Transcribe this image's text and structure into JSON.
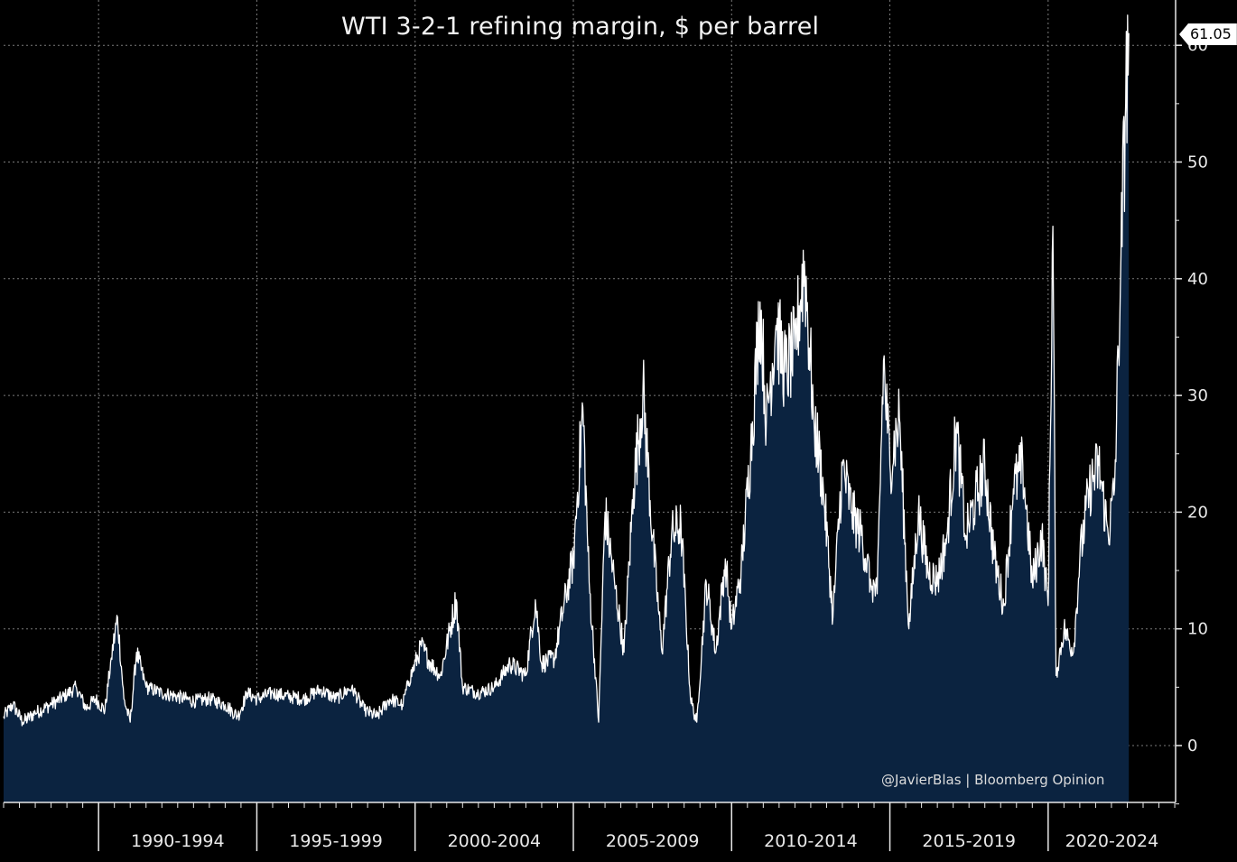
{
  "chart_data": {
    "type": "area",
    "title": "WTI 3-2-1 refining margin, $ per barrel",
    "xlabel": "",
    "ylabel": "",
    "x_range": [
      1987.0,
      2023.0
    ],
    "ylim": [
      -5,
      62
    ],
    "y_ticks": [
      0,
      10,
      20,
      30,
      40,
      50,
      60
    ],
    "y_tick_labels": [
      "0",
      "10",
      "20",
      "30",
      "40",
      "50",
      "60"
    ],
    "x_periods": [
      {
        "label": "1990-1994",
        "start": 1990,
        "end": 1995
      },
      {
        "label": "1995-1999",
        "start": 1995,
        "end": 2000
      },
      {
        "label": "2000-2004",
        "start": 2000,
        "end": 2005
      },
      {
        "label": "2005-2009",
        "start": 2005,
        "end": 2010
      },
      {
        "label": "2010-2014",
        "start": 2010,
        "end": 2015
      },
      {
        "label": "2015-2019",
        "start": 2015,
        "end": 2020
      },
      {
        "label": "2020-2024",
        "start": 2020,
        "end": 2025
      }
    ],
    "last_value_label": "61.05",
    "grid": true,
    "fill_color": "#0b2340",
    "line_color": "#ffffff",
    "series": [
      {
        "name": "WTI 3-2-1 refining margin",
        "points": [
          [
            1987.0,
            2.5
          ],
          [
            1987.3,
            3.5
          ],
          [
            1987.6,
            2.0
          ],
          [
            1988.0,
            2.8
          ],
          [
            1988.5,
            3.5
          ],
          [
            1988.9,
            4.2
          ],
          [
            1989.3,
            5.0
          ],
          [
            1989.6,
            3.2
          ],
          [
            1989.9,
            4.0
          ],
          [
            1990.2,
            3.0
          ],
          [
            1990.4,
            7.5
          ],
          [
            1990.6,
            11.0
          ],
          [
            1990.8,
            4.0
          ],
          [
            1991.0,
            2.0
          ],
          [
            1991.2,
            8.0
          ],
          [
            1991.5,
            5.0
          ],
          [
            1992.0,
            4.5
          ],
          [
            1992.5,
            4.2
          ],
          [
            1993.0,
            3.8
          ],
          [
            1993.5,
            4.0
          ],
          [
            1994.0,
            3.5
          ],
          [
            1994.4,
            2.5
          ],
          [
            1994.7,
            4.5
          ],
          [
            1995.0,
            4.0
          ],
          [
            1995.5,
            4.5
          ],
          [
            1996.0,
            4.2
          ],
          [
            1996.5,
            4.0
          ],
          [
            1997.0,
            4.8
          ],
          [
            1997.5,
            4.0
          ],
          [
            1998.0,
            5.0
          ],
          [
            1998.4,
            3.0
          ],
          [
            1998.8,
            2.5
          ],
          [
            1999.2,
            4.0
          ],
          [
            1999.6,
            3.5
          ],
          [
            1999.8,
            5.5
          ],
          [
            2000.2,
            8.5
          ],
          [
            2000.5,
            7.0
          ],
          [
            2000.8,
            6.0
          ],
          [
            2001.3,
            12.5
          ],
          [
            2001.5,
            5.0
          ],
          [
            2002.0,
            4.5
          ],
          [
            2002.5,
            5.0
          ],
          [
            2003.0,
            7.0
          ],
          [
            2003.5,
            6.0
          ],
          [
            2003.8,
            12.5
          ],
          [
            2004.0,
            7.0
          ],
          [
            2004.4,
            7.5
          ],
          [
            2004.7,
            12.0
          ],
          [
            2005.0,
            16.0
          ],
          [
            2005.3,
            29.0
          ],
          [
            2005.5,
            14.0
          ],
          [
            2005.8,
            2.0
          ],
          [
            2006.0,
            20.0
          ],
          [
            2006.3,
            14.0
          ],
          [
            2006.6,
            8.0
          ],
          [
            2006.9,
            22.0
          ],
          [
            2007.2,
            30.5
          ],
          [
            2007.5,
            18.0
          ],
          [
            2007.8,
            8.0
          ],
          [
            2008.1,
            18.0
          ],
          [
            2008.4,
            19.0
          ],
          [
            2008.7,
            4.0
          ],
          [
            2008.9,
            2.0
          ],
          [
            2009.2,
            14.0
          ],
          [
            2009.5,
            8.0
          ],
          [
            2009.8,
            16.0
          ],
          [
            2010.0,
            10.0
          ],
          [
            2010.3,
            15.0
          ],
          [
            2010.6,
            25.0
          ],
          [
            2010.9,
            38.0
          ],
          [
            2011.1,
            28.0
          ],
          [
            2011.4,
            36.0
          ],
          [
            2011.7,
            32.0
          ],
          [
            2012.0,
            34.0
          ],
          [
            2012.3,
            41.5
          ],
          [
            2012.6,
            28.0
          ],
          [
            2012.9,
            22.0
          ],
          [
            2013.2,
            11.0
          ],
          [
            2013.5,
            24.0
          ],
          [
            2013.8,
            20.0
          ],
          [
            2014.1,
            18.0
          ],
          [
            2014.4,
            14.0
          ],
          [
            2014.6,
            13.0
          ],
          [
            2014.8,
            33.0
          ],
          [
            2015.0,
            24.0
          ],
          [
            2015.3,
            28.0
          ],
          [
            2015.6,
            10.0
          ],
          [
            2015.9,
            20.0
          ],
          [
            2016.2,
            15.0
          ],
          [
            2016.5,
            14.0
          ],
          [
            2016.8,
            18.0
          ],
          [
            2017.1,
            27.0
          ],
          [
            2017.4,
            18.0
          ],
          [
            2017.7,
            21.0
          ],
          [
            2018.0,
            24.0
          ],
          [
            2018.3,
            16.0
          ],
          [
            2018.6,
            12.0
          ],
          [
            2018.9,
            22.0
          ],
          [
            2019.2,
            24.0
          ],
          [
            2019.5,
            14.0
          ],
          [
            2019.8,
            18.0
          ],
          [
            2020.0,
            12.0
          ],
          [
            2020.15,
            44.5
          ],
          [
            2020.25,
            6.0
          ],
          [
            2020.5,
            10.0
          ],
          [
            2020.8,
            8.0
          ],
          [
            2021.0,
            16.0
          ],
          [
            2021.3,
            22.0
          ],
          [
            2021.6,
            24.0
          ],
          [
            2021.9,
            18.0
          ],
          [
            2022.1,
            22.0
          ],
          [
            2022.3,
            42.0
          ],
          [
            2022.45,
            55.0
          ],
          [
            2022.55,
            61.05
          ]
        ]
      }
    ]
  },
  "footer": {
    "credit": "@JavierBlas | Bloomberg Opinion"
  }
}
